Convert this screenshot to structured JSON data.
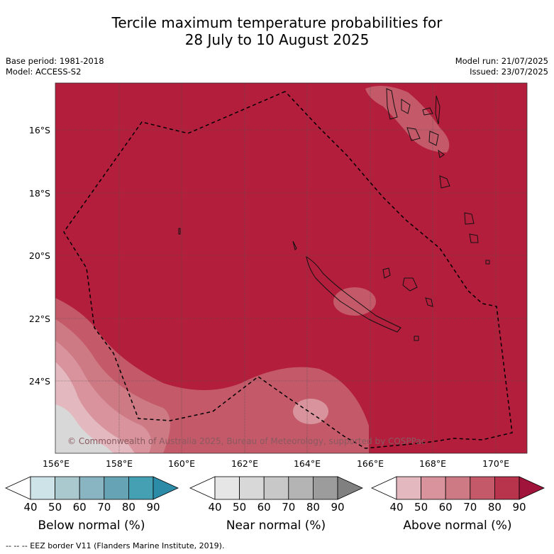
{
  "title_line1": "Tercile maximum temperature probabilities for",
  "title_line2": "28 July to 10 August 2025",
  "base_period": "Base period: 1981-2018",
  "model": "Model: ACCESS-S2",
  "model_run": "Model run: 21/07/2025",
  "issued": "Issued: 23/07/2025",
  "copyright": "© Commonwealth of Australia 2025, Bureau of Meteorology, supported by COSPPac",
  "lat_labels": [
    "16°S",
    "18°S",
    "20°S",
    "22°S",
    "24°S"
  ],
  "lon_labels": [
    "156°E",
    "158°E",
    "160°E",
    "162°E",
    "164°E",
    "166°E",
    "168°E",
    "170°E"
  ],
  "colorbars": [
    {
      "label": "Below normal (%)",
      "ticks": [
        "40",
        "50",
        "60",
        "70",
        "80",
        "90"
      ],
      "colors": [
        "#ffffff",
        "#cde3e8",
        "#a9c9cf",
        "#88b5c1",
        "#66a3b4",
        "#45a0b3",
        "#2c8ca8"
      ]
    },
    {
      "label": "Near normal (%)",
      "ticks": [
        "40",
        "50",
        "60",
        "70",
        "80",
        "90"
      ],
      "colors": [
        "#ffffff",
        "#e6e6e6",
        "#d8d8d8",
        "#c8c8c8",
        "#b4b4b4",
        "#9c9c9c",
        "#808080"
      ]
    },
    {
      "label": "Above normal (%)",
      "ticks": [
        "40",
        "50",
        "60",
        "70",
        "80",
        "90"
      ],
      "colors": [
        "#ffffff",
        "#e3b8bf",
        "#d8939c",
        "#cd7a84",
        "#c45a69",
        "#b8334c",
        "#a0133a"
      ]
    }
  ],
  "footnote": "--  --  -- EEZ border V11 (Flanders Marine Institute, 2019).",
  "colors": {
    "dominant": "#b21e3c",
    "mid": "#c45a69",
    "light": "#d8939c",
    "pale": "#e3b8bf",
    "near": "#d8d8d8"
  }
}
